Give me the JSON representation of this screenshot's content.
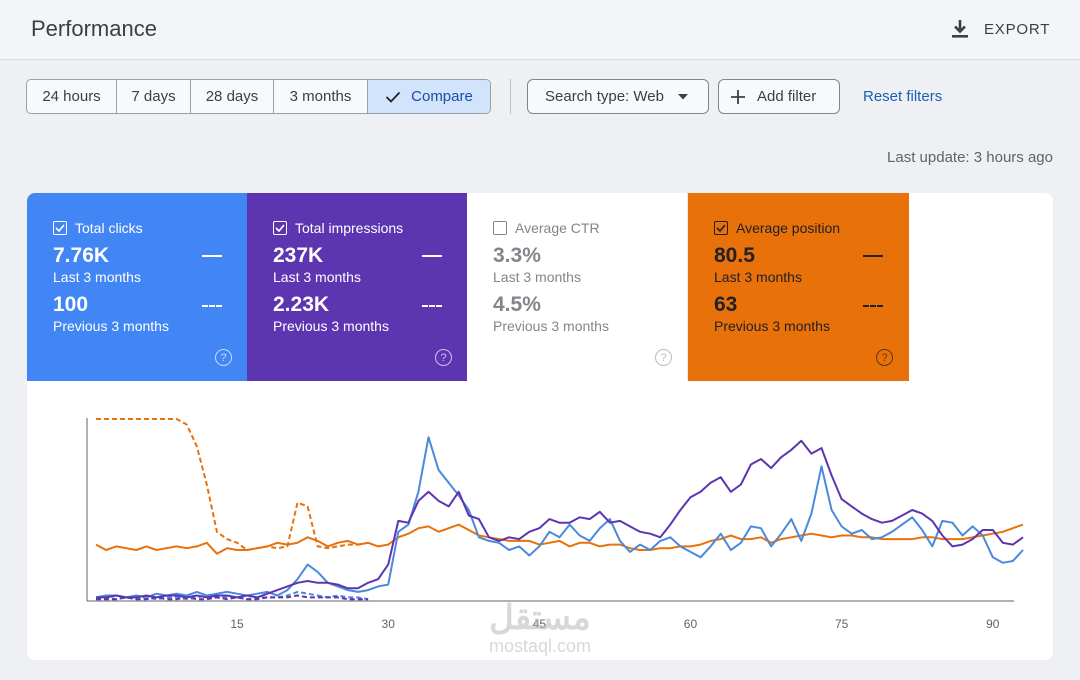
{
  "header": {
    "title": "Performance",
    "export_label": "EXPORT"
  },
  "toolbar": {
    "ranges": [
      "24 hours",
      "7 days",
      "28 days",
      "3 months"
    ],
    "compare_label": "Compare",
    "search_type_label": "Search type: Web",
    "add_filter_label": "Add filter",
    "reset_label": "Reset filters"
  },
  "last_update": "Last update: 3 hours ago",
  "metrics": {
    "clicks": {
      "label": "Total clicks",
      "value": "7.76K",
      "period": "Last 3 months",
      "prev_value": "100",
      "prev_period": "Previous 3 months",
      "checked": true,
      "color": "#4285f4"
    },
    "impressions": {
      "label": "Total impressions",
      "value": "237K",
      "period": "Last 3 months",
      "prev_value": "2.23K",
      "prev_period": "Previous 3 months",
      "checked": true,
      "color": "#5e35b1"
    },
    "ctr": {
      "label": "Average CTR",
      "value": "3.3%",
      "period": "Last 3 months",
      "prev_value": "4.5%",
      "prev_period": "Previous 3 months",
      "checked": false,
      "color": "#80868b"
    },
    "position": {
      "label": "Average position",
      "value": "80.5",
      "period": "Last 3 months",
      "prev_value": "63",
      "prev_period": "Previous 3 months",
      "checked": true,
      "color": "#e8710a"
    }
  },
  "watermark": {
    "arabic": "مستقل",
    "latin": "mostaql.com"
  },
  "chart_data": {
    "type": "line",
    "x_ticks": [
      15,
      30,
      45,
      60,
      75,
      90
    ],
    "xlim": [
      1,
      93
    ],
    "grid": false,
    "series": [
      {
        "name": "Total clicks",
        "style": "solid",
        "color": "#4a89dc",
        "values": [
          0.02,
          0.03,
          0.03,
          0.02,
          0.03,
          0.02,
          0.04,
          0.03,
          0.04,
          0.03,
          0.05,
          0.03,
          0.04,
          0.05,
          0.04,
          0.03,
          0.04,
          0.05,
          0.03,
          0.06,
          0.12,
          0.2,
          0.16,
          0.1,
          0.08,
          0.06,
          0.05,
          0.06,
          0.08,
          0.09,
          0.38,
          0.42,
          0.6,
          0.9,
          0.72,
          0.65,
          0.58,
          0.5,
          0.35,
          0.33,
          0.32,
          0.28,
          0.3,
          0.25,
          0.3,
          0.38,
          0.35,
          0.42,
          0.36,
          0.33,
          0.4,
          0.45,
          0.33,
          0.27,
          0.31,
          0.28,
          0.33,
          0.35,
          0.3,
          0.27,
          0.24,
          0.3,
          0.37,
          0.28,
          0.32,
          0.41,
          0.4,
          0.3,
          0.37,
          0.45,
          0.33,
          0.48,
          0.74,
          0.5,
          0.41,
          0.37,
          0.39,
          0.34,
          0.35,
          0.38,
          0.42,
          0.46,
          0.39,
          0.3,
          0.44,
          0.43,
          0.36,
          0.41,
          0.36,
          0.24,
          0.21,
          0.22,
          0.28
        ]
      },
      {
        "name": "Total impressions",
        "style": "solid",
        "color": "#5e35b1",
        "values": [
          0.02,
          0.02,
          0.03,
          0.02,
          0.02,
          0.03,
          0.02,
          0.03,
          0.03,
          0.02,
          0.03,
          0.02,
          0.03,
          0.03,
          0.02,
          0.03,
          0.02,
          0.04,
          0.06,
          0.08,
          0.1,
          0.11,
          0.1,
          0.1,
          0.09,
          0.07,
          0.07,
          0.1,
          0.12,
          0.2,
          0.44,
          0.43,
          0.55,
          0.6,
          0.55,
          0.52,
          0.6,
          0.47,
          0.45,
          0.35,
          0.33,
          0.35,
          0.34,
          0.38,
          0.4,
          0.45,
          0.43,
          0.43,
          0.46,
          0.45,
          0.49,
          0.43,
          0.44,
          0.41,
          0.38,
          0.37,
          0.35,
          0.42,
          0.5,
          0.57,
          0.6,
          0.65,
          0.68,
          0.6,
          0.64,
          0.75,
          0.78,
          0.73,
          0.79,
          0.83,
          0.88,
          0.81,
          0.84,
          0.69,
          0.56,
          0.52,
          0.48,
          0.45,
          0.43,
          0.44,
          0.47,
          0.5,
          0.48,
          0.44,
          0.36,
          0.3,
          0.31,
          0.34,
          0.39,
          0.39,
          0.32,
          0.31,
          0.35
        ]
      },
      {
        "name": "Average position",
        "style": "solid",
        "color": "#e8710a",
        "values": [
          0.31,
          0.28,
          0.3,
          0.29,
          0.28,
          0.3,
          0.28,
          0.29,
          0.3,
          0.29,
          0.3,
          0.32,
          0.26,
          0.29,
          0.28,
          0.28,
          0.29,
          0.3,
          0.32,
          0.31,
          0.32,
          0.35,
          0.33,
          0.3,
          0.32,
          0.33,
          0.31,
          0.32,
          0.3,
          0.31,
          0.35,
          0.37,
          0.4,
          0.41,
          0.38,
          0.4,
          0.42,
          0.39,
          0.36,
          0.35,
          0.34,
          0.33,
          0.33,
          0.33,
          0.31,
          0.32,
          0.33,
          0.3,
          0.32,
          0.32,
          0.3,
          0.31,
          0.31,
          0.29,
          0.28,
          0.28,
          0.29,
          0.29,
          0.3,
          0.3,
          0.31,
          0.33,
          0.34,
          0.36,
          0.34,
          0.34,
          0.35,
          0.32,
          0.34,
          0.35,
          0.36,
          0.37,
          0.36,
          0.35,
          0.36,
          0.36,
          0.35,
          0.35,
          0.34,
          0.34,
          0.34,
          0.34,
          0.35,
          0.35,
          0.34,
          0.34,
          0.34,
          0.35,
          0.36,
          0.37,
          0.38,
          0.4,
          0.42
        ]
      },
      {
        "name": "Previous clicks",
        "style": "dashed",
        "color": "#4a89dc",
        "values": [
          0.01,
          0.02,
          0.01,
          0.02,
          0.01,
          0.02,
          0.01,
          0.02,
          0.02,
          0.01,
          0.02,
          0.03,
          0.02,
          0.02,
          0.02,
          0.01,
          0.02,
          0.02,
          0.02,
          0.03,
          0.05,
          0.04,
          0.03,
          0.02,
          0.03,
          0.02,
          0.02,
          0.01
        ]
      },
      {
        "name": "Previous impressions",
        "style": "dashed",
        "color": "#5e35b1",
        "values": [
          0.01,
          0.01,
          0.01,
          0.02,
          0.01,
          0.01,
          0.02,
          0.01,
          0.01,
          0.02,
          0.01,
          0.01,
          0.02,
          0.01,
          0.02,
          0.01,
          0.01,
          0.02,
          0.02,
          0.02,
          0.03,
          0.02,
          0.02,
          0.02,
          0.02,
          0.01,
          0.01,
          0.01
        ]
      },
      {
        "name": "Previous position",
        "style": "dashed",
        "color": "#e8710a",
        "values": [
          1.0,
          1.0,
          1.0,
          1.0,
          1.0,
          1.0,
          1.0,
          1.0,
          1.0,
          0.97,
          0.85,
          0.64,
          0.38,
          0.34,
          0.32,
          0.28,
          0.29,
          0.3,
          0.29,
          0.3,
          0.54,
          0.52,
          0.3,
          0.29,
          0.3,
          0.31,
          0.31,
          0.32
        ]
      }
    ]
  }
}
